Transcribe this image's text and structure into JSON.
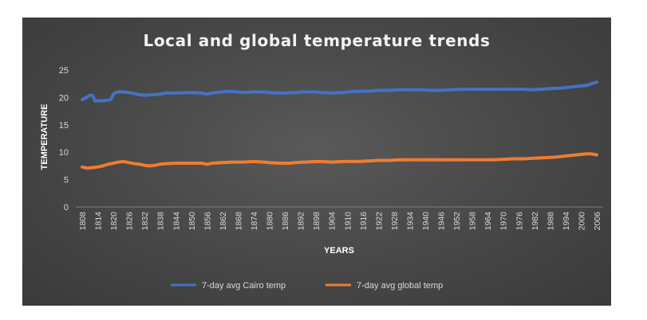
{
  "chart_data": {
    "type": "line",
    "title": "Local and global temperature trends",
    "xlabel": "YEARS",
    "ylabel": "TEMPERATURE",
    "ylim": [
      0,
      25
    ],
    "yticks": [
      0,
      5,
      10,
      15,
      20,
      25
    ],
    "xlim": [
      1808,
      2006
    ],
    "xticks": [
      "1808",
      "1814",
      "1820",
      "1826",
      "1832",
      "1838",
      "1844",
      "1850",
      "1856",
      "1862",
      "1868",
      "1874",
      "1880",
      "1886",
      "1892",
      "1898",
      "1904",
      "1910",
      "1916",
      "1922",
      "1928",
      "1934",
      "1940",
      "1946",
      "1952",
      "1958",
      "1964",
      "1970",
      "1976",
      "1982",
      "1988",
      "1994",
      "2000",
      "2006"
    ],
    "grid": false,
    "legend": "bottom",
    "colors": {
      "cairo": "#4472c4",
      "global": "#ed7d31"
    },
    "series": [
      {
        "name": "7-day avg Cairo temp",
        "color": "#4472c4",
        "x": [
          1808,
          1810,
          1811,
          1812,
          1813,
          1814,
          1816,
          1818,
          1819,
          1820,
          1821,
          1822,
          1824,
          1826,
          1828,
          1830,
          1832,
          1835,
          1838,
          1840,
          1844,
          1850,
          1854,
          1856,
          1858,
          1862,
          1864,
          1868,
          1870,
          1874,
          1878,
          1880,
          1884,
          1886,
          1890,
          1894,
          1898,
          1900,
          1904,
          1908,
          1910,
          1914,
          1916,
          1920,
          1922,
          1926,
          1930,
          1934,
          1938,
          1942,
          1946,
          1950,
          1954,
          1958,
          1962,
          1966,
          1970,
          1974,
          1978,
          1980,
          1984,
          1988,
          1992,
          1994,
          1998,
          2000,
          2002,
          2004,
          2006
        ],
        "values": [
          19.6,
          20.1,
          20.4,
          20.4,
          19.3,
          19.4,
          19.4,
          19.5,
          19.6,
          20.6,
          20.9,
          21.0,
          21.0,
          20.9,
          20.7,
          20.5,
          20.4,
          20.5,
          20.6,
          20.8,
          20.8,
          20.9,
          20.8,
          20.6,
          20.8,
          21.0,
          21.1,
          21.0,
          20.9,
          21.0,
          21.0,
          20.9,
          20.8,
          20.8,
          20.9,
          21.0,
          21.0,
          20.9,
          20.8,
          20.9,
          21.0,
          21.1,
          21.1,
          21.2,
          21.3,
          21.3,
          21.4,
          21.4,
          21.4,
          21.3,
          21.3,
          21.4,
          21.5,
          21.5,
          21.5,
          21.5,
          21.5,
          21.5,
          21.5,
          21.4,
          21.5,
          21.6,
          21.7,
          21.8,
          22.0,
          22.1,
          22.2,
          22.5,
          22.8
        ]
      },
      {
        "name": "7-day avg global temp",
        "color": "#ed7d31",
        "x": [
          1808,
          1810,
          1812,
          1814,
          1816,
          1818,
          1820,
          1822,
          1824,
          1826,
          1828,
          1830,
          1832,
          1834,
          1836,
          1838,
          1840,
          1844,
          1850,
          1854,
          1856,
          1858,
          1862,
          1866,
          1870,
          1874,
          1878,
          1880,
          1884,
          1888,
          1890,
          1894,
          1898,
          1900,
          1904,
          1908,
          1910,
          1914,
          1918,
          1922,
          1926,
          1930,
          1934,
          1938,
          1942,
          1946,
          1950,
          1954,
          1958,
          1962,
          1966,
          1970,
          1974,
          1978,
          1982,
          1986,
          1990,
          1994,
          1998,
          2000,
          2002,
          2004,
          2006
        ],
        "values": [
          7.3,
          7.1,
          7.2,
          7.3,
          7.5,
          7.8,
          8.0,
          8.2,
          8.3,
          8.1,
          7.9,
          7.8,
          7.6,
          7.5,
          7.6,
          7.8,
          7.9,
          8.0,
          8.0,
          8.0,
          7.8,
          8.0,
          8.1,
          8.2,
          8.2,
          8.3,
          8.2,
          8.1,
          8.0,
          8.0,
          8.1,
          8.2,
          8.3,
          8.3,
          8.2,
          8.3,
          8.3,
          8.3,
          8.4,
          8.5,
          8.5,
          8.6,
          8.6,
          8.6,
          8.6,
          8.6,
          8.6,
          8.6,
          8.6,
          8.6,
          8.6,
          8.7,
          8.8,
          8.8,
          8.9,
          9.0,
          9.1,
          9.3,
          9.5,
          9.6,
          9.7,
          9.7,
          9.5
        ]
      }
    ]
  }
}
